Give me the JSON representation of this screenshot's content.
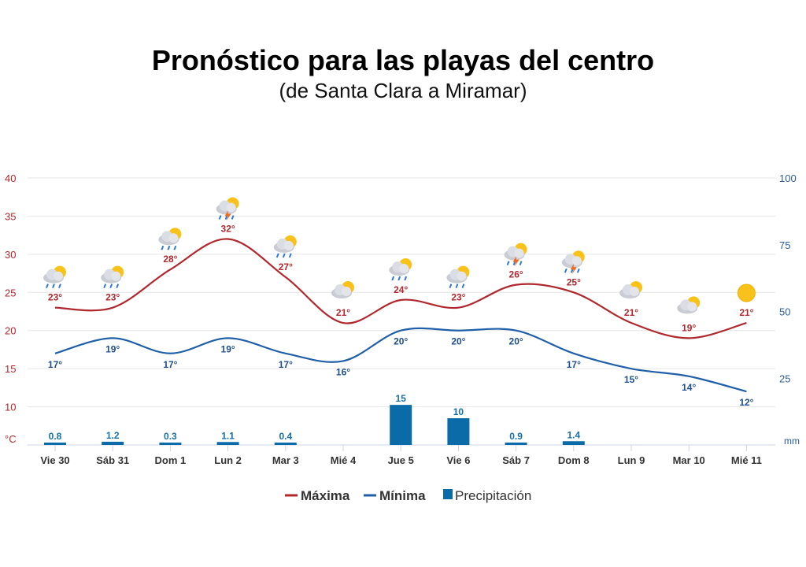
{
  "title": "Pronóstico para las playas del centro",
  "subtitle": "(de Santa Clara a Miramar)",
  "chart_data": {
    "type": "line+bar",
    "categories": [
      "Vie 30",
      "Sáb 31",
      "Dom 1",
      "Lun 2",
      "Mar 3",
      "Mié 4",
      "Jue 5",
      "Vie 6",
      "Sáb 7",
      "Dom 8",
      "Lun 9",
      "Mar 10",
      "Mié 11"
    ],
    "series": [
      {
        "name": "Máxima",
        "type": "line",
        "axis": "left",
        "color": "#b0282e",
        "values": [
          23,
          23,
          28,
          32,
          27,
          21,
          24,
          23,
          26,
          25,
          21,
          19,
          21
        ]
      },
      {
        "name": "Mínima",
        "type": "line",
        "axis": "left",
        "color": "#1f5fa8",
        "values": [
          17,
          19,
          17,
          19,
          17,
          16,
          20,
          20,
          20,
          17,
          15,
          14,
          12
        ]
      },
      {
        "name": "Precipitación",
        "type": "bar",
        "axis": "right",
        "color": "#0b6ba8",
        "values": [
          0.8,
          1.2,
          0.3,
          1.1,
          0.4,
          null,
          15,
          10,
          0.9,
          1.4,
          null,
          null,
          null
        ]
      }
    ],
    "icons": [
      "rain-sun",
      "rain-sun",
      "rain-sun",
      "storm-sun",
      "rain-sun",
      "partly-cloudy",
      "rain-sun",
      "rain-sun",
      "storm-sun",
      "storm-sun",
      "partly-cloudy",
      "partly-cloudy",
      "sun"
    ],
    "left_axis": {
      "unit": "°C",
      "range": [
        5,
        40
      ],
      "ticks": [
        10,
        15,
        20,
        25,
        30,
        35,
        40
      ]
    },
    "right_axis": {
      "unit": "mm",
      "range": [
        0,
        100
      ],
      "ticks": [
        25,
        50,
        75,
        100
      ]
    },
    "grid": true,
    "legend_position": "bottom-center"
  }
}
